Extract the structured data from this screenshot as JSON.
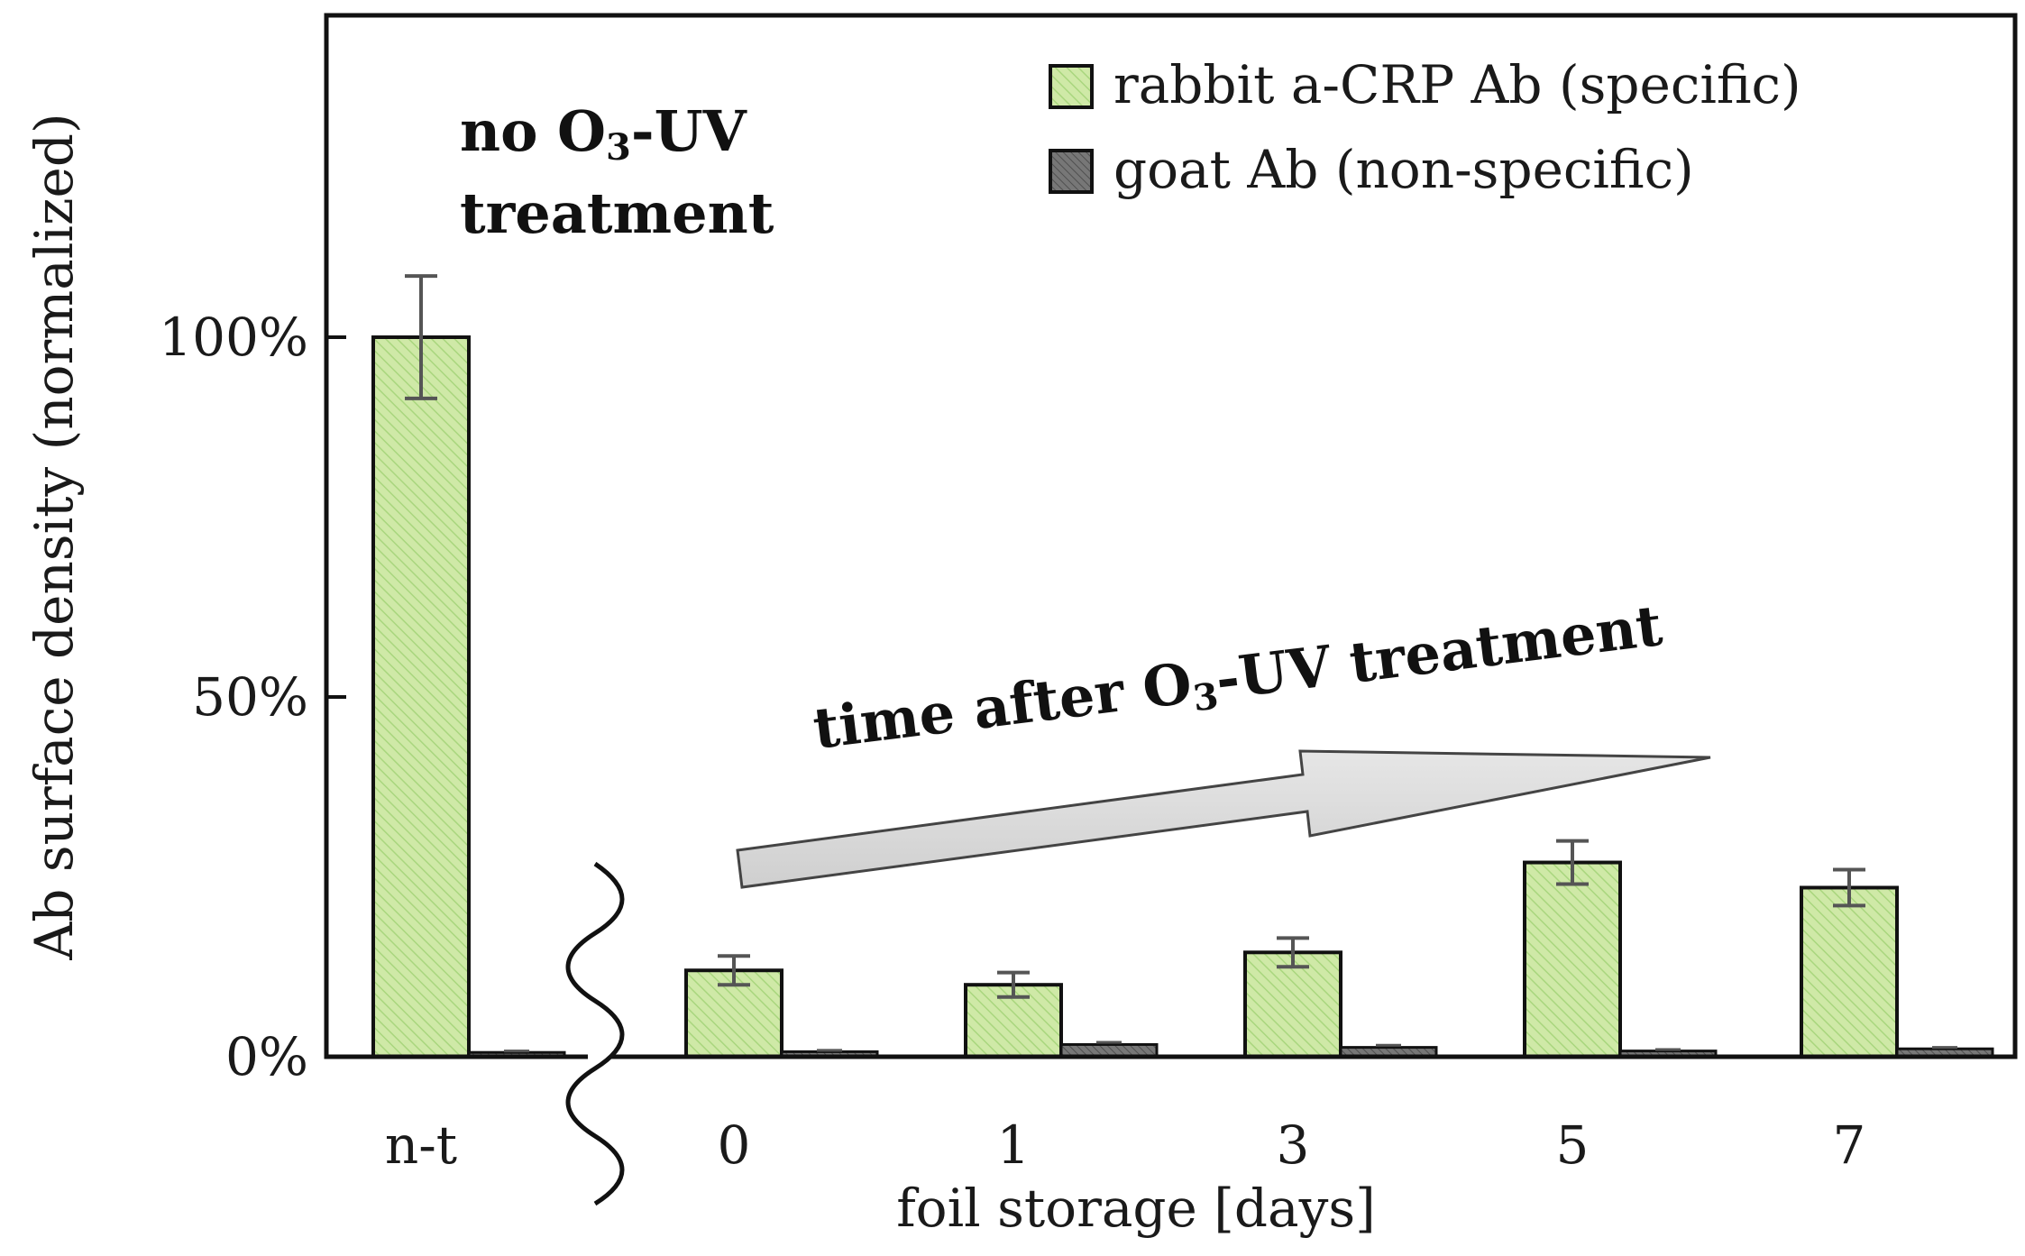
{
  "chart_data": {
    "type": "bar",
    "title": "",
    "xlabel": "foil storage [days]",
    "ylabel": "Ab surface density (normalized)",
    "ylim": [
      0,
      140
    ],
    "yticks": [
      {
        "value": 0,
        "label": "0%"
      },
      {
        "value": 50,
        "label": "50%"
      },
      {
        "value": 100,
        "label": "100%"
      }
    ],
    "categories": [
      "n-t",
      "0",
      "1",
      "3",
      "5",
      "7"
    ],
    "series": [
      {
        "name": "rabbit a-CRP Ab (specific)",
        "color": "#cfe9a7",
        "hatch_color": "#9fcf72",
        "values": [
          100,
          12,
          10,
          14.5,
          27,
          23.5
        ],
        "errors": [
          8.5,
          2,
          1.7,
          2,
          3,
          2.5
        ]
      },
      {
        "name": "goat Ab (non-specific)",
        "color": "#6f6f6f",
        "hatch_color": "#4a4a4a",
        "values": [
          0.6,
          0.7,
          1.7,
          1.3,
          0.8,
          1.1
        ],
        "errors": [
          0.2,
          0.2,
          0.3,
          0.3,
          0.2,
          0.2
        ]
      }
    ],
    "legend_position": "top-right",
    "annotations": {
      "no_treatment_line1_a": "no O",
      "no_treatment_line1_sub": "3",
      "no_treatment_line1_b": "-UV",
      "no_treatment_line2": "treatment",
      "time_after_a": "time after O",
      "time_after_sub": "3",
      "time_after_b": "-UV treatment"
    },
    "axis_break": "between n-t and 0"
  }
}
